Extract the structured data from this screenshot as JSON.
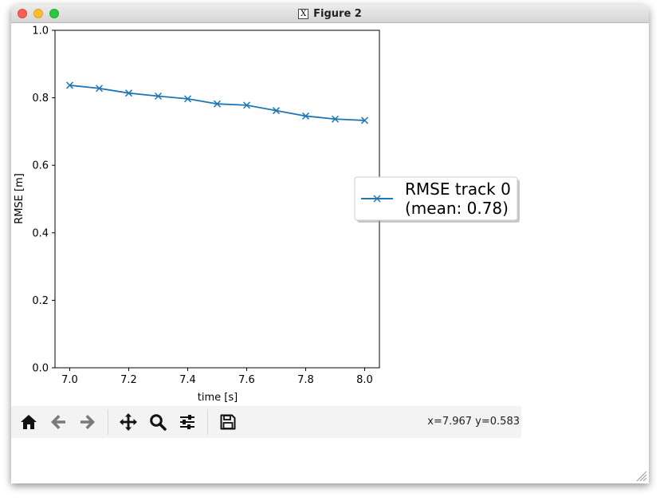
{
  "window": {
    "title": "Figure 2"
  },
  "toolbar": {
    "buttons": [
      {
        "name": "home-icon",
        "label": "Home"
      },
      {
        "name": "back-icon",
        "label": "Back"
      },
      {
        "name": "forward-icon",
        "label": "Forward"
      },
      {
        "name": "pan-icon",
        "label": "Pan"
      },
      {
        "name": "zoom-icon",
        "label": "Zoom"
      },
      {
        "name": "configure-subplots-icon",
        "label": "Configure subplots"
      },
      {
        "name": "save-icon",
        "label": "Save"
      }
    ],
    "coordinates": "x=7.967 y=0.583"
  },
  "chart_data": {
    "type": "line",
    "title": "",
    "xlabel": "time [s]",
    "ylabel": "RMSE [m]",
    "xlim": [
      6.95,
      8.05
    ],
    "ylim": [
      0.0,
      1.0
    ],
    "xticks": [
      "7.0",
      "7.2",
      "7.4",
      "7.6",
      "7.8",
      "8.0"
    ],
    "yticks": [
      "0.0",
      "0.2",
      "0.4",
      "0.6",
      "0.8",
      "1.0"
    ],
    "grid": false,
    "legend_position": "right, outside the axes",
    "series": [
      {
        "name": "RMSE track 0\n(mean: 0.78)",
        "legend_lines": [
          "RMSE track 0",
          "(mean: 0.78)"
        ],
        "color": "#1f77b4",
        "marker": "x",
        "x": [
          7.0,
          7.1,
          7.2,
          7.3,
          7.4,
          7.5,
          7.6,
          7.7,
          7.8,
          7.9,
          8.0
        ],
        "y": [
          0.837,
          0.828,
          0.814,
          0.805,
          0.797,
          0.782,
          0.778,
          0.762,
          0.746,
          0.737,
          0.733
        ]
      }
    ]
  }
}
